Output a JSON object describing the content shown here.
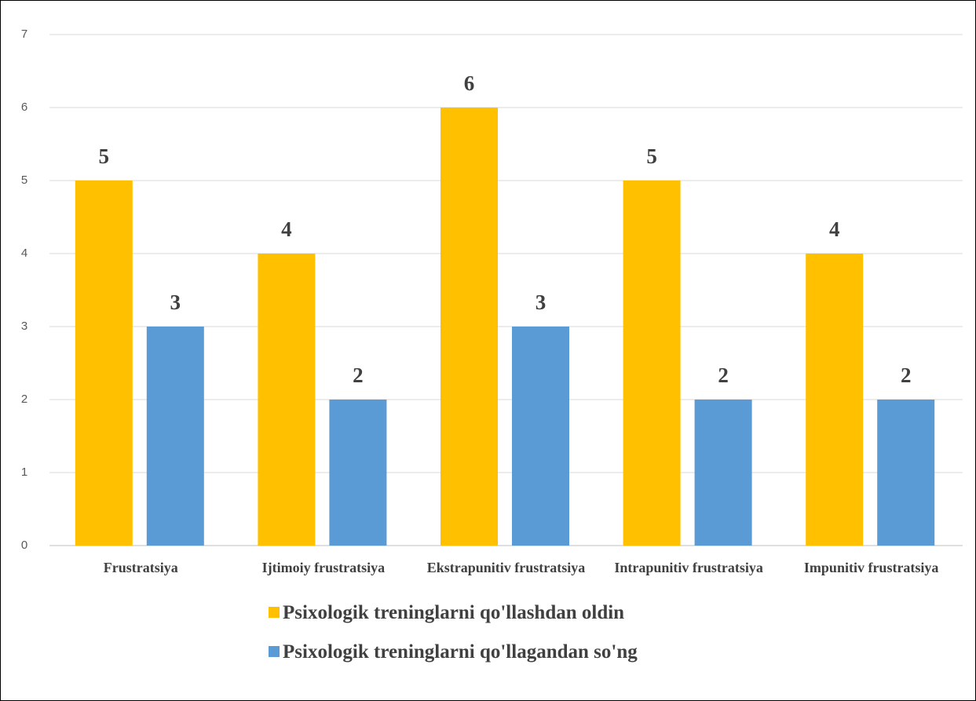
{
  "chart_data": {
    "type": "bar",
    "categories": [
      "Frustratsiya",
      "Ijtimoiy frustratsiya",
      "Ekstrapunitiv frustratsiya",
      "Intrapunitiv frustratsiya",
      "Impunitiv frustratsiya"
    ],
    "series": [
      {
        "name": "Psixologik treninglarni qo'llashdan oldin",
        "color": "#ffc000",
        "values": [
          5,
          4,
          6,
          5,
          4
        ]
      },
      {
        "name": "Psixologik treninglarni qo'llagandan so'ng",
        "color": "#5b9bd5",
        "values": [
          3,
          2,
          3,
          2,
          2
        ]
      }
    ],
    "ylim": [
      0,
      7
    ],
    "yticks": [
      0,
      1,
      2,
      3,
      4,
      5,
      6,
      7
    ],
    "grid": true
  }
}
